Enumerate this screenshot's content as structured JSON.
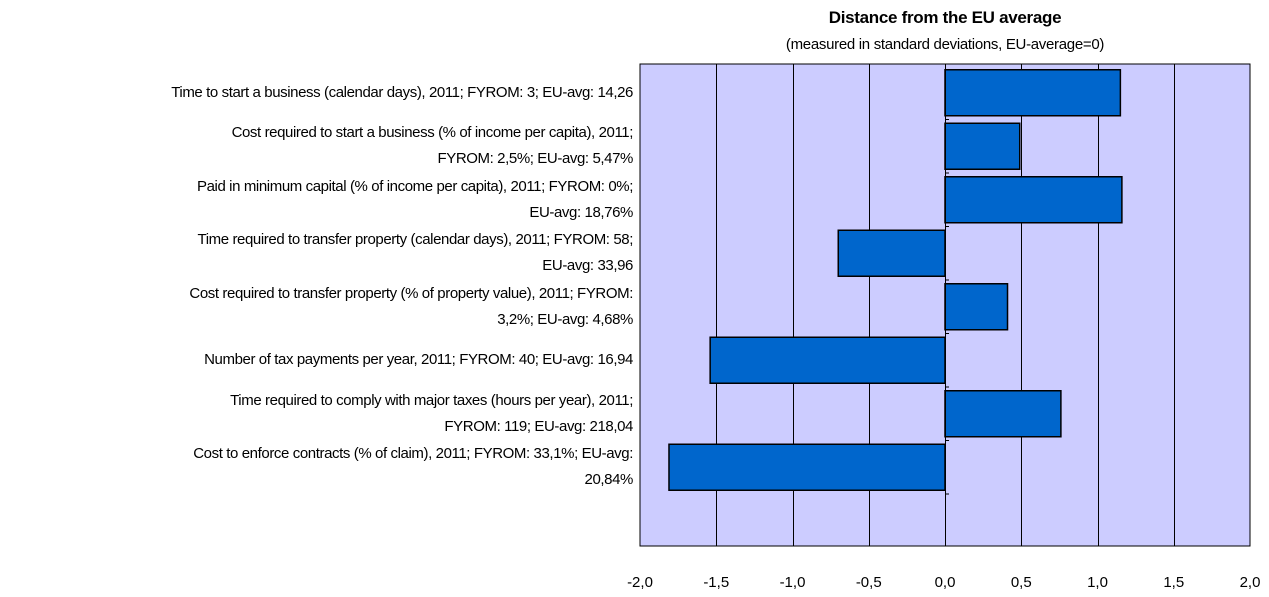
{
  "chart_data": {
    "type": "bar",
    "orientation": "horizontal",
    "title": "Distance from the EU average",
    "subtitle": "(measured in standard deviations, EU-average=0)",
    "categories": [
      [
        "Time to start a business (calendar days), 2011; FYROM: 3; EU-avg: 14,26"
      ],
      [
        "Cost required to start a business (% of income per capita), 2011;",
        "FYROM: 2,5%; EU-avg: 5,47%"
      ],
      [
        "Paid in minimum capital (% of income per capita), 2011; FYROM: 0%;",
        "EU-avg: 18,76%"
      ],
      [
        "Time required to transfer property (calendar days), 2011; FYROM: 58;",
        "EU-avg: 33,96"
      ],
      [
        "Cost required to transfer property (% of property value), 2011; FYROM:",
        "3,2%; EU-avg: 4,68%"
      ],
      [
        "Number of tax payments per year, 2011; FYROM: 40; EU-avg: 16,94"
      ],
      [
        "Time required to comply with major taxes (hours per year), 2011;",
        "FYROM: 119; EU-avg: 218,04"
      ],
      [
        "Cost to enforce contracts (% of claim), 2011; FYROM: 33,1%; EU-avg:",
        "20,84%"
      ]
    ],
    "values": [
      1.15,
      0.49,
      1.16,
      -0.7,
      0.41,
      -1.54,
      0.76,
      -1.81
    ],
    "xlim": [
      -2.0,
      2.0
    ],
    "xticks": [
      -2.0,
      -1.5,
      -1.0,
      -0.5,
      0.0,
      0.5,
      1.0,
      1.5,
      2.0
    ],
    "xtick_labels": [
      "-2,0",
      "-1,5",
      "-1,0",
      "-0,5",
      "0,0",
      "0,5",
      "1,0",
      "1,5",
      "2,0"
    ],
    "grid": "vertical",
    "colors": {
      "plot_bg": "#ccccff",
      "bar": "#0066cc",
      "bar_border": "#000000"
    }
  }
}
